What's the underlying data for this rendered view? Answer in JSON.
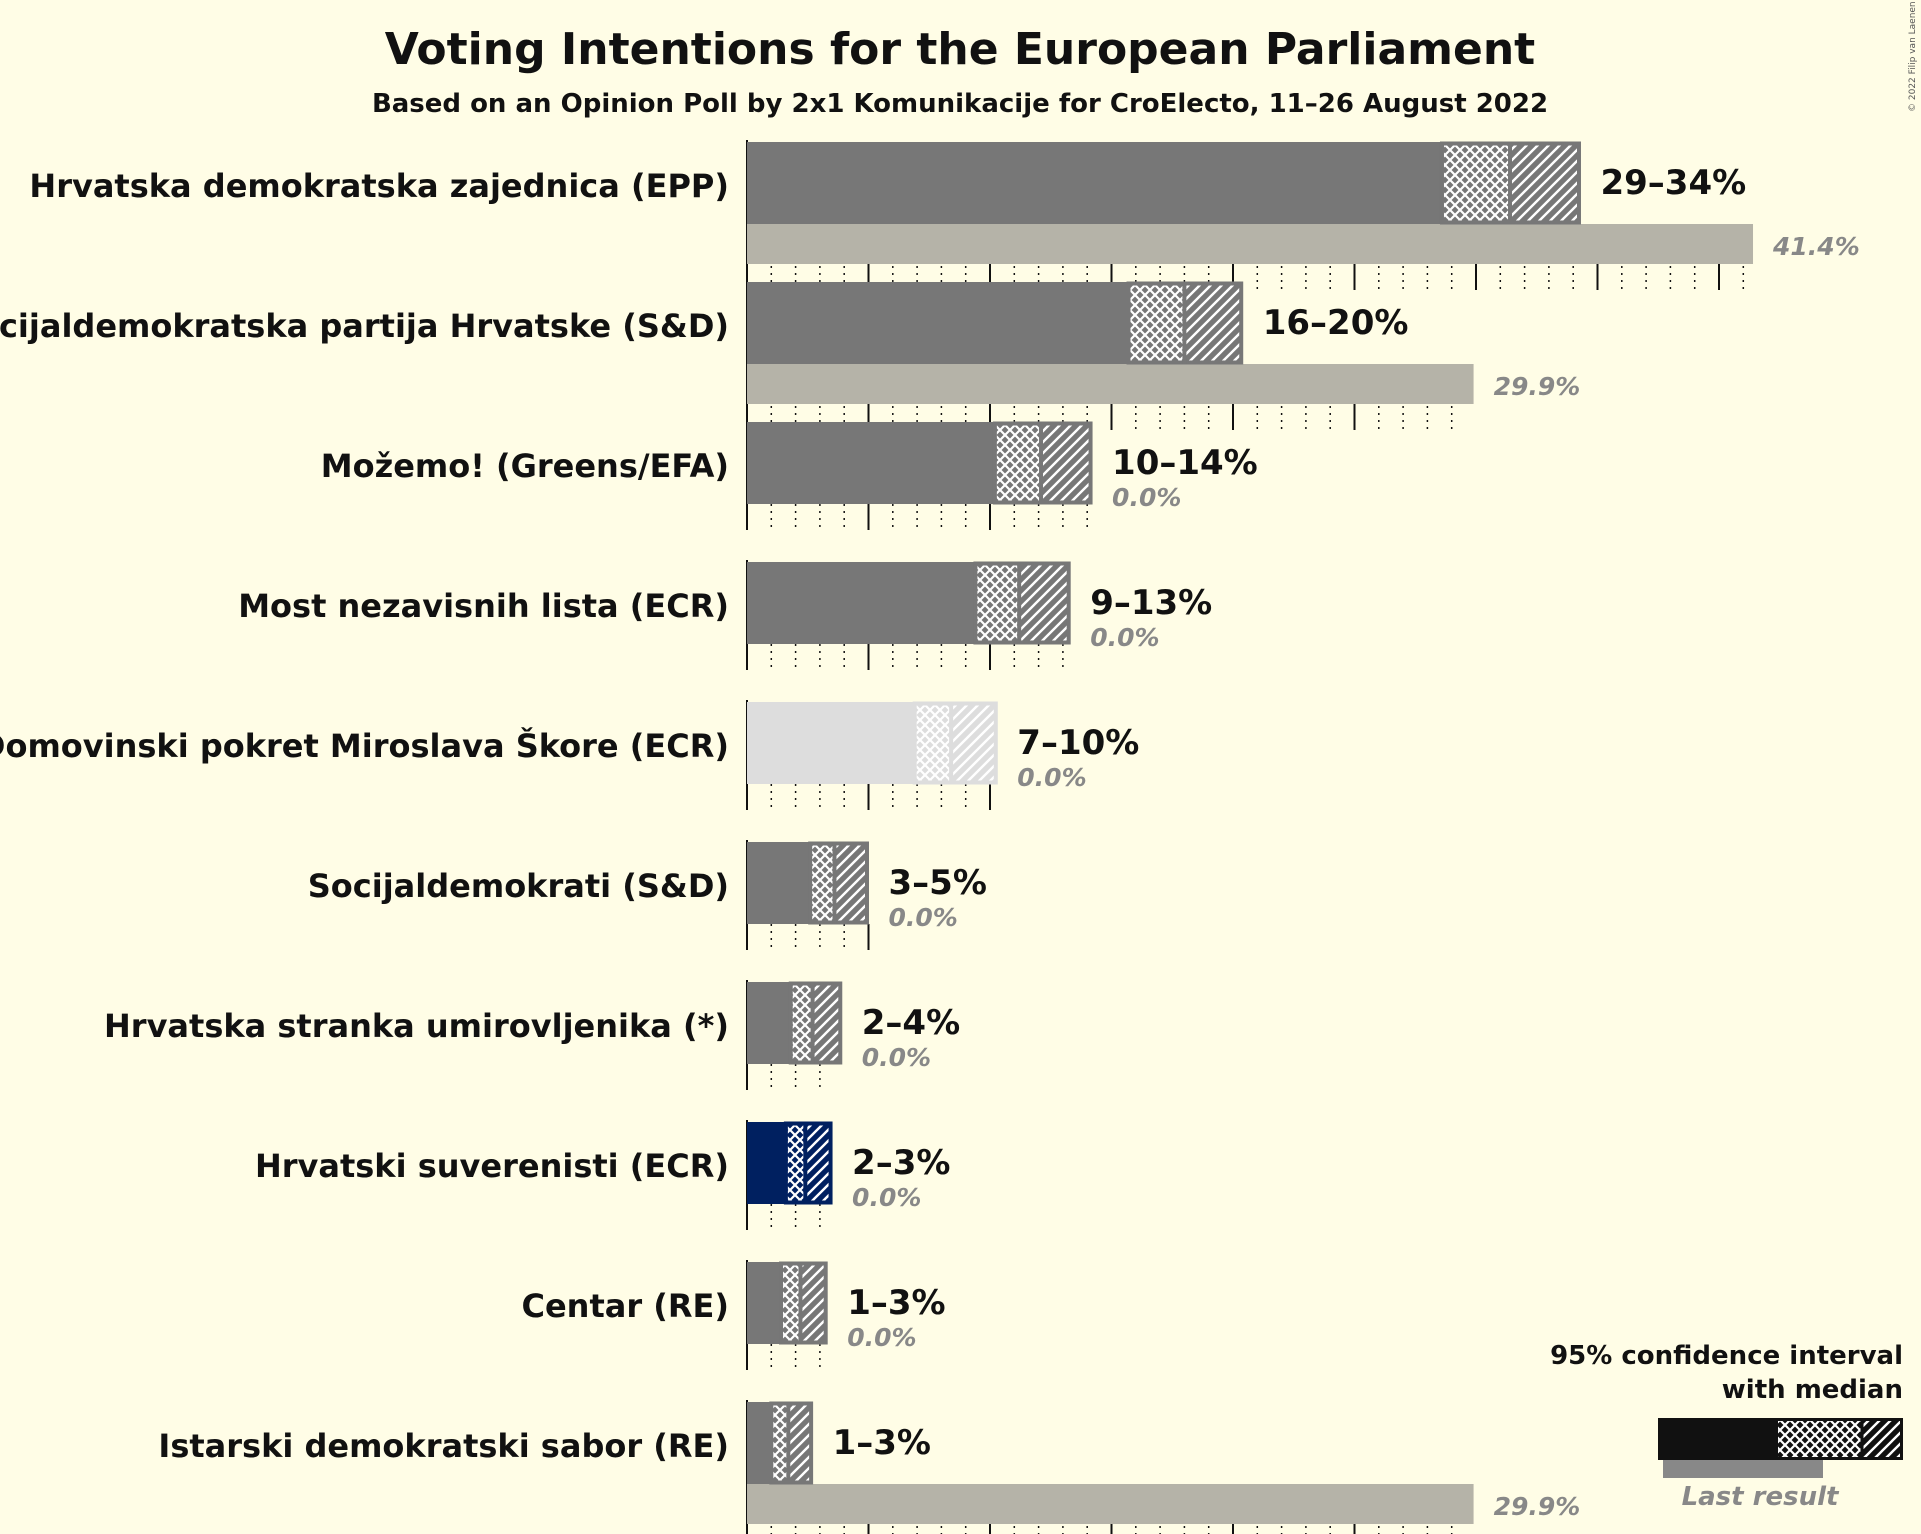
{
  "chart_data": {
    "type": "bar",
    "title": "Voting Intentions for the European Parliament",
    "subtitle": "Based on an Opinion Poll by 2x1 Komunikacije for CroElecto, 11–26 August 2022",
    "copyright": "© 2022 Filip van Laenen",
    "xlim": [
      0,
      45
    ],
    "parties": [
      {
        "name": "Hrvatska demokratska zajednica (EPP)",
        "range_label": "29–34%",
        "last_label": "41.4%",
        "low": 28.6,
        "median": 31.4,
        "high": 34.3,
        "last": 41.4,
        "color": "#777777"
      },
      {
        "name": "Socijaldemokratska partija Hrvatske (S&D)",
        "range_label": "16–20%",
        "last_label": "29.9%",
        "low": 15.7,
        "median": 18.0,
        "high": 20.4,
        "last": 29.9,
        "color": "#777777"
      },
      {
        "name": "Možemo! (Greens/EFA)",
        "range_label": "10–14%",
        "last_label": "0.0%",
        "low": 10.2,
        "median": 12.1,
        "high": 14.2,
        "last": 0.0,
        "color": "#777777"
      },
      {
        "name": "Most nezavisnih lista (ECR)",
        "range_label": "9–13%",
        "last_label": "0.0%",
        "low": 9.4,
        "median": 11.2,
        "high": 13.3,
        "last": 0.0,
        "color": "#777777"
      },
      {
        "name": "Domovinski pokret Miroslava Škore (ECR)",
        "range_label": "7–10%",
        "last_label": "0.0%",
        "low": 6.9,
        "median": 8.4,
        "high": 10.3,
        "last": 0.0,
        "color": "#DDDDDD"
      },
      {
        "name": "Socijaldemokrati (S&D)",
        "range_label": "3–5%",
        "last_label": "0.0%",
        "low": 2.6,
        "median": 3.6,
        "high": 5.0,
        "last": 0.0,
        "color": "#777777"
      },
      {
        "name": "Hrvatska stranka umirovljenika (*)",
        "range_label": "2–4%",
        "last_label": "0.0%",
        "low": 1.8,
        "median": 2.7,
        "high": 3.9,
        "last": 0.0,
        "color": "#777777"
      },
      {
        "name": "Hrvatski suverenisti (ECR)",
        "range_label": "2–3%",
        "last_label": "0.0%",
        "low": 1.6,
        "median": 2.4,
        "high": 3.5,
        "last": 0.0,
        "color": "#002060"
      },
      {
        "name": "Centar (RE)",
        "range_label": "1–3%",
        "last_label": "0.0%",
        "low": 1.4,
        "median": 2.2,
        "high": 3.3,
        "last": 0.0,
        "color": "#777777"
      },
      {
        "name": "Istarski demokratski sabor (RE)",
        "range_label": "1–3%",
        "last_label": "29.9%",
        "low": 1.0,
        "median": 1.7,
        "high": 2.7,
        "last": 29.9,
        "color": "#777777"
      }
    ],
    "legend": {
      "line1": "95% confidence interval",
      "line2": "with median",
      "last_result": "Last result"
    }
  }
}
